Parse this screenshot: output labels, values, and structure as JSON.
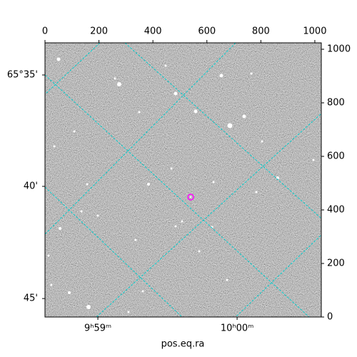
{
  "chart_data": {
    "type": "image",
    "xlabel": "pos.eq.ra",
    "xlim": [
      0,
      1024
    ],
    "ylim": [
      0,
      1024
    ],
    "xticks": [
      0,
      200,
      400,
      600,
      800,
      1000
    ],
    "yticks": [
      0,
      200,
      400,
      600,
      800,
      1000
    ],
    "ra_ticks": [
      {
        "value": 196,
        "label": "9ʰ59ᵐ"
      },
      {
        "value": 712,
        "label": "10ʰ00ᵐ"
      }
    ],
    "dec_ticks": [
      {
        "value": 904,
        "label": "65°35'"
      },
      {
        "value": 488,
        "label": "40'"
      },
      {
        "value": 69,
        "label": "45'"
      }
    ],
    "marker": {
      "x": 540,
      "y": 448,
      "color": "#ff00ff"
    },
    "grid_color": "#00cccc"
  }
}
